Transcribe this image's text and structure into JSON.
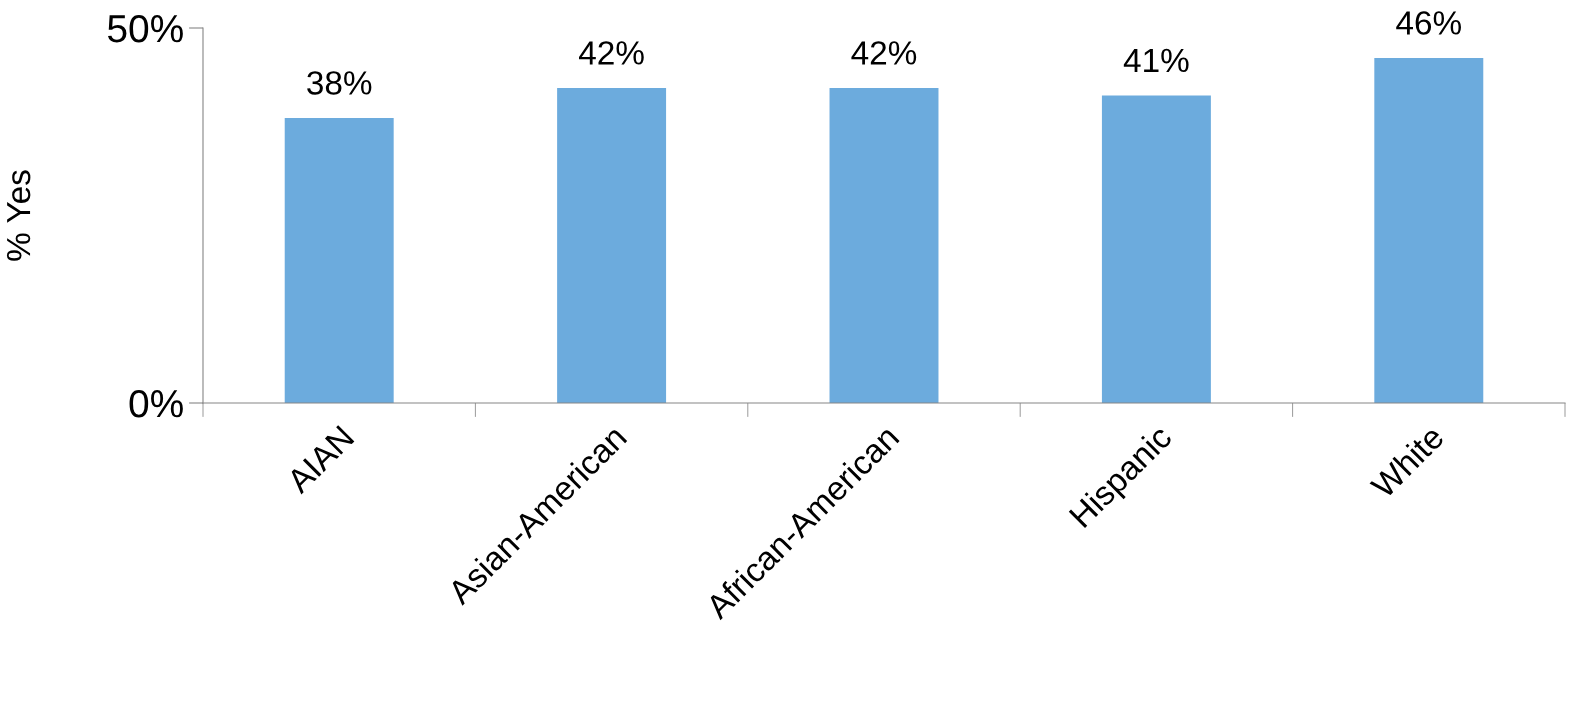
{
  "chart_data": {
    "type": "bar",
    "ylabel": "% Yes",
    "categories": [
      "AIAN",
      "Asian-American",
      "African-American",
      "Hispanic",
      "White"
    ],
    "values": [
      38,
      42,
      42,
      41,
      46
    ],
    "value_labels": [
      "38%",
      "42%",
      "42%",
      "41%",
      "46%"
    ],
    "color": "#6cabdd",
    "ylim": [
      0,
      50
    ],
    "yticks": [
      {
        "value": 0,
        "label": "0%"
      },
      {
        "value": 50,
        "label": "50%"
      }
    ],
    "grid": false,
    "legend": false
  }
}
